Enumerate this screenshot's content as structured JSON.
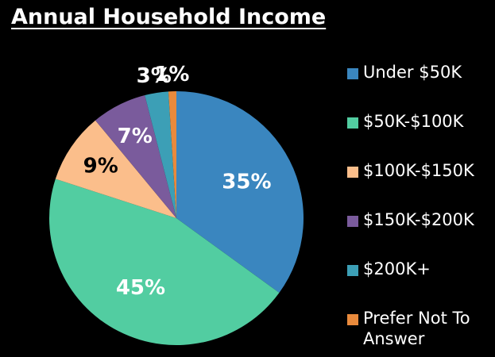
{
  "chart_data": {
    "type": "pie",
    "title": "Annual Household Income",
    "categories": [
      "Under $50K",
      "$50K-$100K",
      "$100K-$150K",
      "$150K-$200K",
      "$200K+",
      "Prefer Not To Answer"
    ],
    "values": [
      35,
      45,
      9,
      7,
      3,
      1
    ],
    "value_labels": [
      "35%",
      "45%",
      "9%",
      "7%",
      "3%",
      "1%"
    ],
    "colors": [
      "#3a86bf",
      "#52cda1",
      "#fbbe8b",
      "#7a5b9c",
      "#3c9fb6",
      "#e98a3c"
    ],
    "legend": "right"
  }
}
